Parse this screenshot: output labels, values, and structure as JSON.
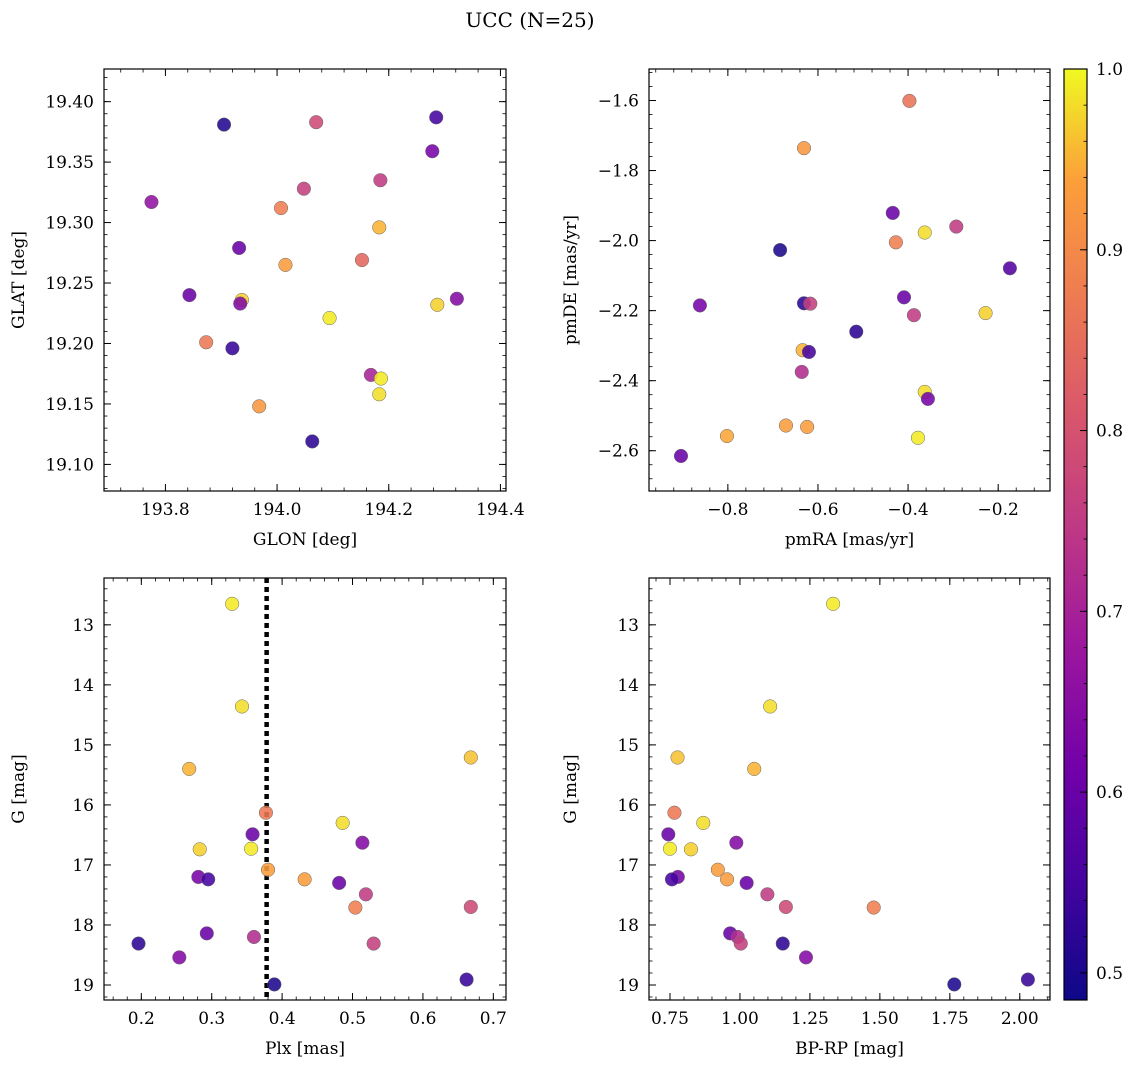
{
  "title": "UCC (N=25)",
  "colorbar": {
    "colormap": "plasma",
    "range": [
      0.485,
      1.0
    ],
    "ticks": [
      0.5,
      0.6,
      0.7,
      0.8,
      0.9,
      1.0
    ],
    "tick_labels": [
      "0.5",
      "0.6",
      "0.7",
      "0.8",
      "0.9",
      "1.0"
    ]
  },
  "chart_data": [
    {
      "type": "scatter",
      "xlabel": "GLON [deg]",
      "ylabel": "GLAT [deg]",
      "xlim": [
        193.69,
        194.41
      ],
      "ylim": [
        19.078,
        19.427
      ],
      "xticks": [
        193.8,
        194.0,
        194.2,
        194.4
      ],
      "xtick_labels": [
        "193.8",
        "194.0",
        "194.2",
        "194.4"
      ],
      "yticks": [
        19.1,
        19.15,
        19.2,
        19.25,
        19.3,
        19.35,
        19.4
      ],
      "ytick_labels": [
        "19.10",
        "19.15",
        "19.20",
        "19.25",
        "19.30",
        "19.35",
        "19.40"
      ],
      "x": [
        193.905,
        194.07,
        194.285,
        194.278,
        193.775,
        194.048,
        194.185,
        194.007,
        194.183,
        193.932,
        194.015,
        194.152,
        193.843,
        193.937,
        193.934,
        194.322,
        194.287,
        194.094,
        193.873,
        193.92,
        194.168,
        194.186,
        194.183,
        193.968,
        194.063
      ],
      "y": [
        19.381,
        19.383,
        19.387,
        19.359,
        19.317,
        19.328,
        19.335,
        19.312,
        19.296,
        19.279,
        19.265,
        19.269,
        19.24,
        19.236,
        19.233,
        19.237,
        19.232,
        19.221,
        19.201,
        19.196,
        19.174,
        19.171,
        19.158,
        19.148,
        19.119
      ],
      "c": [
        0.51,
        0.78,
        0.55,
        0.62,
        0.66,
        0.76,
        0.75,
        0.88,
        0.95,
        0.6,
        0.93,
        0.84,
        0.6,
        0.97,
        0.64,
        0.64,
        0.97,
        0.99,
        0.87,
        0.53,
        0.7,
        0.99,
        0.98,
        0.92,
        0.52
      ]
    },
    {
      "type": "scatter",
      "xlabel": "pmRA [mas/yr]",
      "ylabel": "pmDE [mas/yr]",
      "xlim": [
        -0.975,
        -0.085
      ],
      "ylim": [
        -2.715,
        -1.51
      ],
      "xticks": [
        -0.8,
        -0.6,
        -0.4,
        -0.2
      ],
      "xtick_labels": [
        "−0.8",
        "−0.6",
        "−0.4",
        "−0.2"
      ],
      "yticks": [
        -2.6,
        -2.4,
        -2.2,
        -2.0,
        -1.8,
        -1.6
      ],
      "ytick_labels": [
        "−2.6",
        "−2.4",
        "−2.2",
        "−2.0",
        "−1.8",
        "−1.6"
      ],
      "x": [
        -0.397,
        -0.631,
        -0.434,
        -0.293,
        -0.427,
        -0.363,
        -0.684,
        -0.174,
        -0.862,
        -0.631,
        -0.617,
        -0.409,
        -0.387,
        -0.515,
        -0.634,
        -0.62,
        -0.636,
        -0.363,
        -0.356,
        -0.228,
        -0.802,
        -0.671,
        -0.624,
        -0.378,
        -0.904
      ],
      "y": [
        -1.601,
        -1.736,
        -1.921,
        -1.96,
        -2.005,
        -1.977,
        -2.027,
        -2.079,
        -2.185,
        -2.179,
        -2.18,
        -2.162,
        -2.213,
        -2.26,
        -2.313,
        -2.318,
        -2.375,
        -2.432,
        -2.452,
        -2.207,
        -2.558,
        -2.528,
        -2.532,
        -2.563,
        -2.615
      ],
      "c": [
        0.86,
        0.92,
        0.6,
        0.75,
        0.88,
        0.98,
        0.5,
        0.57,
        0.62,
        0.52,
        0.76,
        0.6,
        0.75,
        0.52,
        0.95,
        0.55,
        0.72,
        0.98,
        0.62,
        0.97,
        0.94,
        0.93,
        0.93,
        0.99,
        0.6
      ]
    },
    {
      "type": "scatter",
      "xlabel": "Plx [mas]",
      "ylabel": "G [mag]",
      "xlim": [
        0.147,
        0.718
      ],
      "ylim": [
        19.25,
        12.22
      ],
      "xticks": [
        0.2,
        0.3,
        0.4,
        0.5,
        0.6,
        0.7
      ],
      "xtick_labels": [
        "0.2",
        "0.3",
        "0.4",
        "0.5",
        "0.6",
        "0.7"
      ],
      "yticks": [
        13,
        14,
        15,
        16,
        17,
        18,
        19
      ],
      "ytick_labels": [
        "13",
        "14",
        "15",
        "16",
        "17",
        "18",
        "19"
      ],
      "vline": 0.378,
      "x": [
        0.329,
        0.343,
        0.268,
        0.668,
        0.377,
        0.486,
        0.358,
        0.514,
        0.283,
        0.356,
        0.38,
        0.281,
        0.295,
        0.432,
        0.481,
        0.519,
        0.504,
        0.668,
        0.293,
        0.36,
        0.196,
        0.53,
        0.254,
        0.389,
        0.662
      ],
      "y": [
        12.65,
        14.36,
        15.4,
        15.21,
        16.13,
        16.3,
        16.49,
        16.63,
        16.74,
        16.73,
        17.08,
        17.2,
        17.24,
        17.24,
        17.3,
        17.49,
        17.71,
        17.7,
        18.14,
        18.2,
        18.31,
        18.31,
        18.54,
        18.99,
        18.91
      ],
      "c": [
        0.99,
        0.98,
        0.95,
        0.96,
        0.87,
        0.98,
        0.6,
        0.64,
        0.97,
        0.99,
        0.93,
        0.62,
        0.55,
        0.93,
        0.6,
        0.75,
        0.88,
        0.78,
        0.6,
        0.72,
        0.52,
        0.76,
        0.64,
        0.5,
        0.53
      ]
    },
    {
      "type": "scatter",
      "xlabel": "BP-RP [mag]",
      "ylabel": "G [mag]",
      "xlim": [
        0.675,
        2.108
      ],
      "ylim": [
        19.25,
        12.22
      ],
      "xticks": [
        0.75,
        1.0,
        1.25,
        1.5,
        1.75,
        2.0
      ],
      "xtick_labels": [
        "0.75",
        "1.00",
        "1.25",
        "1.50",
        "1.75",
        "2.00"
      ],
      "yticks": [
        13,
        14,
        15,
        16,
        17,
        18,
        19
      ],
      "ytick_labels": [
        "13",
        "14",
        "15",
        "16",
        "17",
        "18",
        "19"
      ],
      "x": [
        1.333,
        1.108,
        0.777,
        1.051,
        0.766,
        0.869,
        0.744,
        0.987,
        0.75,
        0.825,
        0.921,
        0.778,
        0.757,
        0.954,
        1.024,
        1.098,
        1.164,
        1.478,
        0.965,
        0.992,
        1.153,
        1.003,
        1.236,
        1.766,
        2.029
      ],
      "y": [
        12.65,
        14.36,
        15.21,
        15.4,
        16.13,
        16.3,
        16.49,
        16.63,
        16.73,
        16.74,
        17.08,
        17.2,
        17.24,
        17.24,
        17.3,
        17.49,
        17.7,
        17.71,
        18.14,
        18.2,
        18.31,
        18.31,
        18.54,
        18.99,
        18.91
      ],
      "c": [
        0.99,
        0.98,
        0.96,
        0.95,
        0.87,
        0.98,
        0.6,
        0.64,
        0.99,
        0.97,
        0.93,
        0.62,
        0.55,
        0.93,
        0.6,
        0.75,
        0.78,
        0.88,
        0.6,
        0.72,
        0.52,
        0.76,
        0.64,
        0.5,
        0.53
      ]
    }
  ]
}
